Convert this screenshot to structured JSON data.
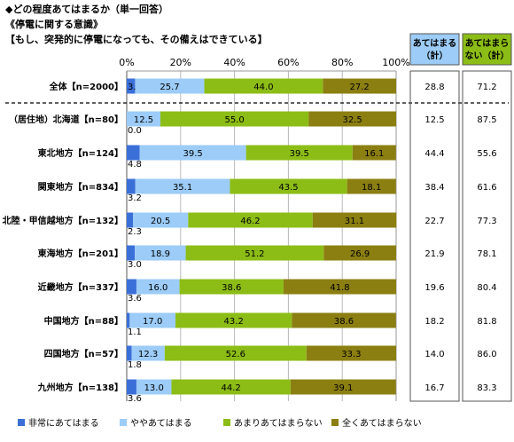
{
  "header": {
    "line1": "◆どの程度あてはまるか（単一回答）",
    "line2": "《停電に関する意識》",
    "line3": "【もし、突発的に停電になっても、その備えはできている】"
  },
  "table_headers": {
    "col1": [
      "あてはまる",
      "（計）"
    ],
    "col2": [
      "あてはまら",
      "ない（計）"
    ]
  },
  "colors": {
    "very": "#3B6FD8",
    "somewhat": "#9CCCF7",
    "not_much": "#8CBD16",
    "not_at_all": "#8B7F12",
    "header_bg": "#9CCCF7"
  },
  "chart_data": {
    "type": "bar",
    "orientation": "horizontal",
    "stacked": true,
    "xlim": [
      0,
      100
    ],
    "x_tick_labels": [
      "0%",
      "20%",
      "40%",
      "60%",
      "80%",
      "100%"
    ],
    "grid": true,
    "legend_position": "bottom",
    "categories": [
      "全体【n=2000】",
      "北海道【n=80】",
      "東北地方【n=124】",
      "関東地方【n=834】",
      "北陸・甲信越地方【n=132】",
      "東海地方【n=201】",
      "近畿地方【n=337】",
      "中国地方【n=88】",
      "四国地方【n=57】",
      "九州地方【n=138】"
    ],
    "group_label": "（居住地）",
    "series": [
      {
        "name": "非常にあてはまる",
        "values": [
          3.1,
          0.0,
          4.8,
          3.2,
          2.3,
          3.0,
          3.6,
          1.1,
          1.8,
          3.6
        ]
      },
      {
        "name": "ややあてはまる",
        "values": [
          25.7,
          12.5,
          39.5,
          35.1,
          20.5,
          18.9,
          16.0,
          17.0,
          12.3,
          13.0
        ]
      },
      {
        "name": "あまりあてはまらない",
        "values": [
          44.0,
          55.0,
          39.5,
          43.5,
          46.2,
          51.2,
          38.6,
          43.2,
          52.6,
          44.2
        ]
      },
      {
        "name": "全くあてはまらない",
        "values": [
          27.2,
          32.5,
          16.1,
          18.1,
          31.1,
          26.9,
          41.8,
          38.6,
          33.3,
          39.1
        ]
      }
    ],
    "totals_applies": [
      28.8,
      12.5,
      44.4,
      38.4,
      22.7,
      21.9,
      19.6,
      18.2,
      14.0,
      16.7
    ],
    "totals_not_applies": [
      71.2,
      87.5,
      55.6,
      61.6,
      77.3,
      78.1,
      80.4,
      81.8,
      86.0,
      83.3
    ]
  }
}
